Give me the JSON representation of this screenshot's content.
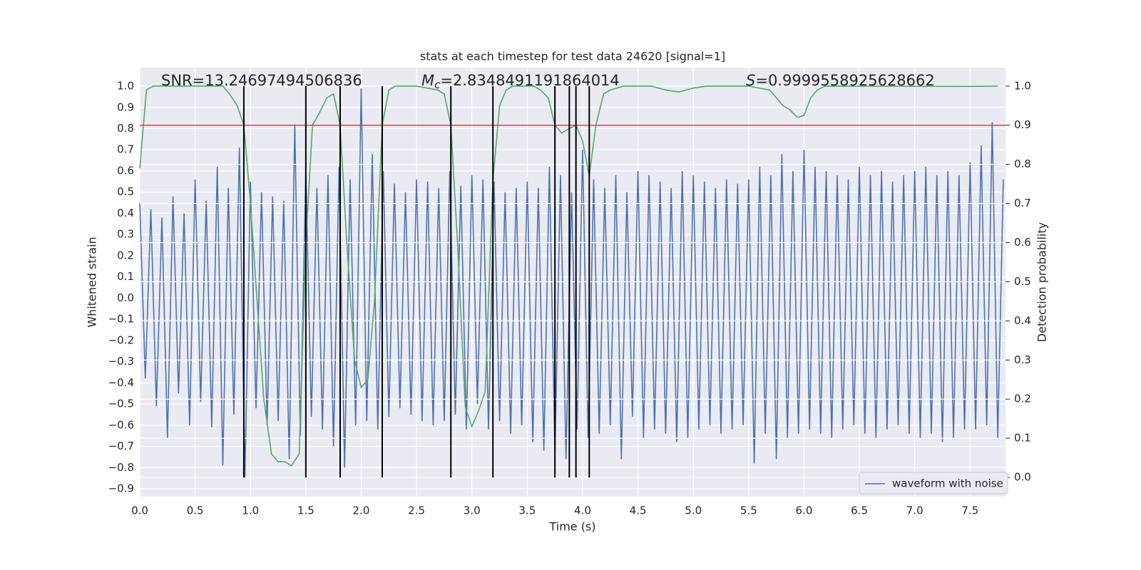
{
  "chart_data": {
    "type": "line",
    "title": "stats at each timestep for test data 24620 [signal=1]",
    "xlabel": "Time (s)",
    "ylabel": "Whitened strain",
    "y2label": "Detection probability",
    "annotations": [
      {
        "text": "SNR=13.24697494506836"
      },
      {
        "symbol": "M",
        "subscript": "c",
        "text": "=2.8348491191864014"
      },
      {
        "symbol": "S",
        "text": "=0.9999558925628662"
      }
    ],
    "xlim": [
      0,
      7.82
    ],
    "ylim": [
      -0.937,
      1.0875
    ],
    "y2lim": [
      -0.049,
      1.047
    ],
    "xticks": [
      {
        "value": 0,
        "label": "0.0"
      },
      0.5,
      {
        "value": 1,
        "label": "1.0"
      },
      1.5,
      {
        "value": 2,
        "label": "2.0"
      },
      2.5,
      {
        "value": 3,
        "label": "3.0"
      },
      3.5,
      {
        "value": 4,
        "label": "4.0"
      },
      4.5,
      {
        "value": 5,
        "label": "5.0"
      },
      5.5,
      {
        "value": 6,
        "label": "6.0"
      },
      6.5,
      {
        "value": 7,
        "label": "7.0"
      },
      7.5
    ],
    "yticks": [
      {
        "value": -0.9,
        "label": "−0.9"
      },
      {
        "value": -0.8,
        "label": "−0.8"
      },
      {
        "value": -0.7,
        "label": "−0.7"
      },
      {
        "value": -0.6,
        "label": "−0.6"
      },
      {
        "value": -0.5,
        "label": "−0.5"
      },
      {
        "value": -0.4,
        "label": "−0.4"
      },
      {
        "value": -0.3,
        "label": "−0.3"
      },
      {
        "value": -0.2,
        "label": "−0.2"
      },
      {
        "value": -0.1,
        "label": "−0.1"
      },
      {
        "value": 0,
        "label": "0.0"
      },
      0.1,
      0.2,
      0.3,
      0.4,
      0.5,
      0.6,
      0.7,
      0.8,
      0.9,
      {
        "value": 1,
        "label": "1.0"
      }
    ],
    "y2ticks": [
      {
        "value": 0,
        "label": "0.0"
      },
      0.1,
      0.2,
      0.3,
      0.4,
      0.5,
      0.6,
      0.7,
      0.8,
      0.9,
      {
        "value": 1,
        "label": "1.0"
      }
    ],
    "grid": true,
    "legend": "lower right",
    "series": [
      {
        "name": "waveform with noise",
        "color": "#4c72b0",
        "x": [
          0,
          0.05,
          0.1,
          0.15,
          0.2,
          0.25,
          0.3,
          0.35,
          0.4,
          0.45,
          0.5,
          0.55,
          0.6,
          0.65,
          0.7,
          0.75,
          0.8,
          0.85,
          0.9,
          0.95,
          1,
          1.05,
          1.1,
          1.15,
          1.2,
          1.25,
          1.3,
          1.35,
          1.4,
          1.45,
          1.5,
          1.55,
          1.6,
          1.65,
          1.7,
          1.75,
          1.8,
          1.85,
          1.9,
          1.95,
          2,
          2.05,
          2.1,
          2.15,
          2.2,
          2.25,
          2.3,
          2.35,
          2.4,
          2.45,
          2.5,
          2.55,
          2.6,
          2.65,
          2.7,
          2.75,
          2.8,
          2.85,
          2.9,
          2.95,
          3,
          3.05,
          3.1,
          3.15,
          3.2,
          3.25,
          3.3,
          3.35,
          3.4,
          3.45,
          3.5,
          3.55,
          3.6,
          3.65,
          3.7,
          3.75,
          3.8,
          3.85,
          3.9,
          3.95,
          4,
          4.05,
          4.1,
          4.15,
          4.2,
          4.25,
          4.3,
          4.35,
          4.4,
          4.45,
          4.5,
          4.55,
          4.6,
          4.65,
          4.7,
          4.75,
          4.8,
          4.85,
          4.9,
          4.95,
          5,
          5.05,
          5.1,
          5.15,
          5.2,
          5.25,
          5.3,
          5.35,
          5.4,
          5.45,
          5.5,
          5.55,
          5.6,
          5.65,
          5.7,
          5.75,
          5.8,
          5.85,
          5.9,
          5.95,
          6,
          6.05,
          6.1,
          6.15,
          6.2,
          6.25,
          6.3,
          6.35,
          6.4,
          6.45,
          6.5,
          6.55,
          6.6,
          6.65,
          6.7,
          6.75,
          6.8,
          6.85,
          6.9,
          6.95,
          7,
          7.05,
          7.1,
          7.15,
          7.2,
          7.25,
          7.3,
          7.35,
          7.4,
          7.45,
          7.5,
          7.55,
          7.6,
          7.65,
          7.7,
          7.75,
          7.8
        ],
        "values": [
          0.45,
          -0.38,
          0.42,
          -0.51,
          0.38,
          -0.66,
          0.48,
          -0.45,
          0.4,
          -0.6,
          0.56,
          -0.49,
          0.46,
          -0.61,
          0.62,
          -0.79,
          0.52,
          -0.55,
          0.71,
          -0.85,
          0.55,
          -0.52,
          0.5,
          -0.6,
          0.48,
          -0.58,
          0.46,
          -0.76,
          0.82,
          -0.65,
          0.6,
          -0.56,
          0.52,
          -0.62,
          0.58,
          -0.7,
          0.62,
          -0.8,
          0.56,
          -0.6,
          0.99,
          -0.58,
          0.68,
          -0.62,
          0.6,
          -0.56,
          0.54,
          -0.52,
          0.5,
          -0.55,
          0.56,
          -0.58,
          0.55,
          -0.6,
          0.52,
          -0.58,
          0.6,
          -0.55,
          0.53,
          -0.62,
          0.58,
          -0.5,
          0.56,
          -0.62,
          0.55,
          -0.58,
          0.5,
          -0.64,
          0.52,
          -0.6,
          0.55,
          -0.68,
          0.52,
          -0.72,
          0.62,
          -0.74,
          0.58,
          -0.76,
          0.5,
          -0.62,
          0.7,
          -0.66,
          0.56,
          -0.64,
          0.52,
          -0.6,
          0.58,
          -0.76,
          0.5,
          -0.56,
          0.6,
          -0.66,
          0.58,
          -0.62,
          0.55,
          -0.64,
          0.52,
          -0.68,
          0.6,
          -0.66,
          0.58,
          -0.62,
          0.55,
          -0.6,
          0.52,
          -0.64,
          0.56,
          -0.62,
          0.54,
          -0.6,
          0.56,
          -0.78,
          0.62,
          -0.64,
          0.58,
          -0.76,
          0.68,
          -0.66,
          0.6,
          -0.64,
          0.7,
          -0.62,
          0.62,
          -0.64,
          0.6,
          -0.66,
          0.58,
          -0.62,
          0.56,
          -0.6,
          0.62,
          -0.64,
          0.58,
          -0.66,
          0.6,
          -0.62,
          0.55,
          -0.6,
          0.58,
          -0.64,
          0.6,
          -0.66,
          0.62,
          -0.64,
          0.58,
          -0.68,
          0.6,
          -0.66,
          0.58,
          -0.62,
          0.64,
          -0.62,
          0.72,
          -0.6,
          0.83,
          -0.66,
          0.56
        ]
      },
      {
        "axis": "y2",
        "color": "#55a868",
        "x": [
          0,
          0.06,
          0.12,
          0.25,
          0.5,
          0.75,
          0.81,
          0.88,
          0.94,
          1,
          1.06,
          1.12,
          1.19,
          1.25,
          1.31,
          1.37,
          1.44,
          1.5,
          1.56,
          1.62,
          1.69,
          1.75,
          1.81,
          1.87,
          1.94,
          2,
          2.06,
          2.12,
          2.19,
          2.25,
          2.31,
          2.5,
          2.69,
          2.75,
          2.81,
          2.87,
          2.94,
          3,
          3.06,
          3.12,
          3.19,
          3.25,
          3.31,
          3.37,
          3.56,
          3.62,
          3.69,
          3.75,
          3.81,
          3.87,
          3.94,
          4,
          4.06,
          4.12,
          4.19,
          4.25,
          4.37,
          4.62,
          4.75,
          4.87,
          5,
          5.12,
          5.5,
          5.69,
          5.75,
          5.81,
          5.87,
          5.94,
          6,
          6.06,
          6.12,
          6.19,
          7.5,
          7.75
        ],
        "values": [
          0.79,
          0.99,
          1.0,
          1.0,
          1.0,
          1.0,
          0.98,
          0.95,
          0.9,
          0.7,
          0.45,
          0.2,
          0.06,
          0.04,
          0.04,
          0.03,
          0.06,
          0.6,
          0.9,
          0.93,
          0.97,
          0.98,
          0.9,
          0.6,
          0.3,
          0.23,
          0.25,
          0.45,
          0.9,
          0.99,
          1.0,
          1.0,
          0.99,
          0.98,
          0.9,
          0.6,
          0.18,
          0.13,
          0.17,
          0.22,
          0.76,
          0.95,
          0.99,
          1.0,
          1.0,
          0.99,
          0.97,
          0.9,
          0.88,
          0.89,
          0.9,
          0.86,
          0.77,
          0.9,
          0.98,
          0.99,
          1.0,
          1.0,
          0.99,
          0.985,
          0.995,
          1.0,
          1.0,
          0.99,
          0.97,
          0.95,
          0.94,
          0.92,
          0.925,
          0.97,
          0.99,
          1.0,
          0.999,
          1.0
        ]
      }
    ],
    "threshold": {
      "value": 0.9,
      "axis": "y2",
      "color": "#c44e52"
    },
    "vlines": {
      "x": [
        0.94,
        1.5,
        1.81,
        2.19,
        2.81,
        3.19,
        3.75,
        3.88,
        3.94,
        4.06
      ],
      "y2_range": [
        0,
        1
      ],
      "color": "#000000"
    }
  }
}
